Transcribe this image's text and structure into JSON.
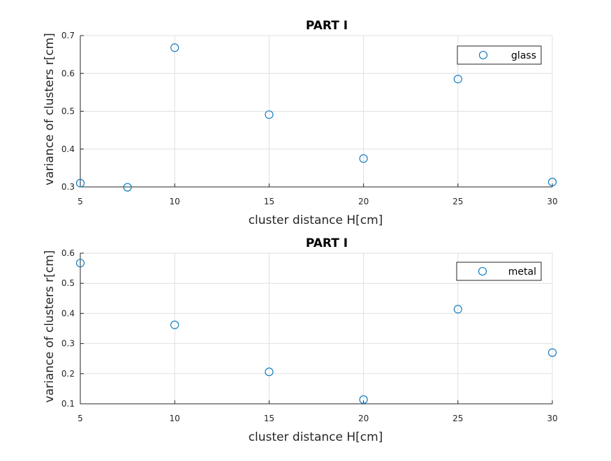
{
  "chart_data": [
    {
      "type": "scatter",
      "title": "PART I",
      "xlabel": "cluster distance H[cm]",
      "ylabel": "variance of clusters r[cm]",
      "xlim": [
        5,
        30
      ],
      "ylim": [
        0.3,
        0.7
      ],
      "xticks": [
        "5",
        "10",
        "15",
        "20",
        "25",
        "30"
      ],
      "yticks": [
        "0.3",
        "0.4",
        "0.5",
        "0.6",
        "0.7"
      ],
      "grid": true,
      "legend_position": "top-right",
      "series": [
        {
          "name": "glass",
          "color": "#0072bd",
          "marker": "circle",
          "x": [
            5,
            7.5,
            10,
            15,
            20,
            25,
            30
          ],
          "y": [
            0.31,
            0.299,
            0.668,
            0.491,
            0.375,
            0.585,
            0.313
          ]
        }
      ]
    },
    {
      "type": "scatter",
      "title": "PART I",
      "xlabel": "cluster distance H[cm]",
      "ylabel": "variance of clusters r[cm]",
      "xlim": [
        5,
        30
      ],
      "ylim": [
        0.1,
        0.6
      ],
      "xticks": [
        "5",
        "10",
        "15",
        "20",
        "25",
        "30"
      ],
      "yticks": [
        "0.1",
        "0.2",
        "0.3",
        "0.4",
        "0.5",
        "0.6"
      ],
      "grid": true,
      "legend_position": "top-right",
      "series": [
        {
          "name": "metal",
          "color": "#0072bd",
          "marker": "circle",
          "x": [
            5,
            10,
            15,
            20,
            25,
            30
          ],
          "y": [
            0.567,
            0.362,
            0.206,
            0.114,
            0.414,
            0.27
          ]
        }
      ]
    }
  ]
}
